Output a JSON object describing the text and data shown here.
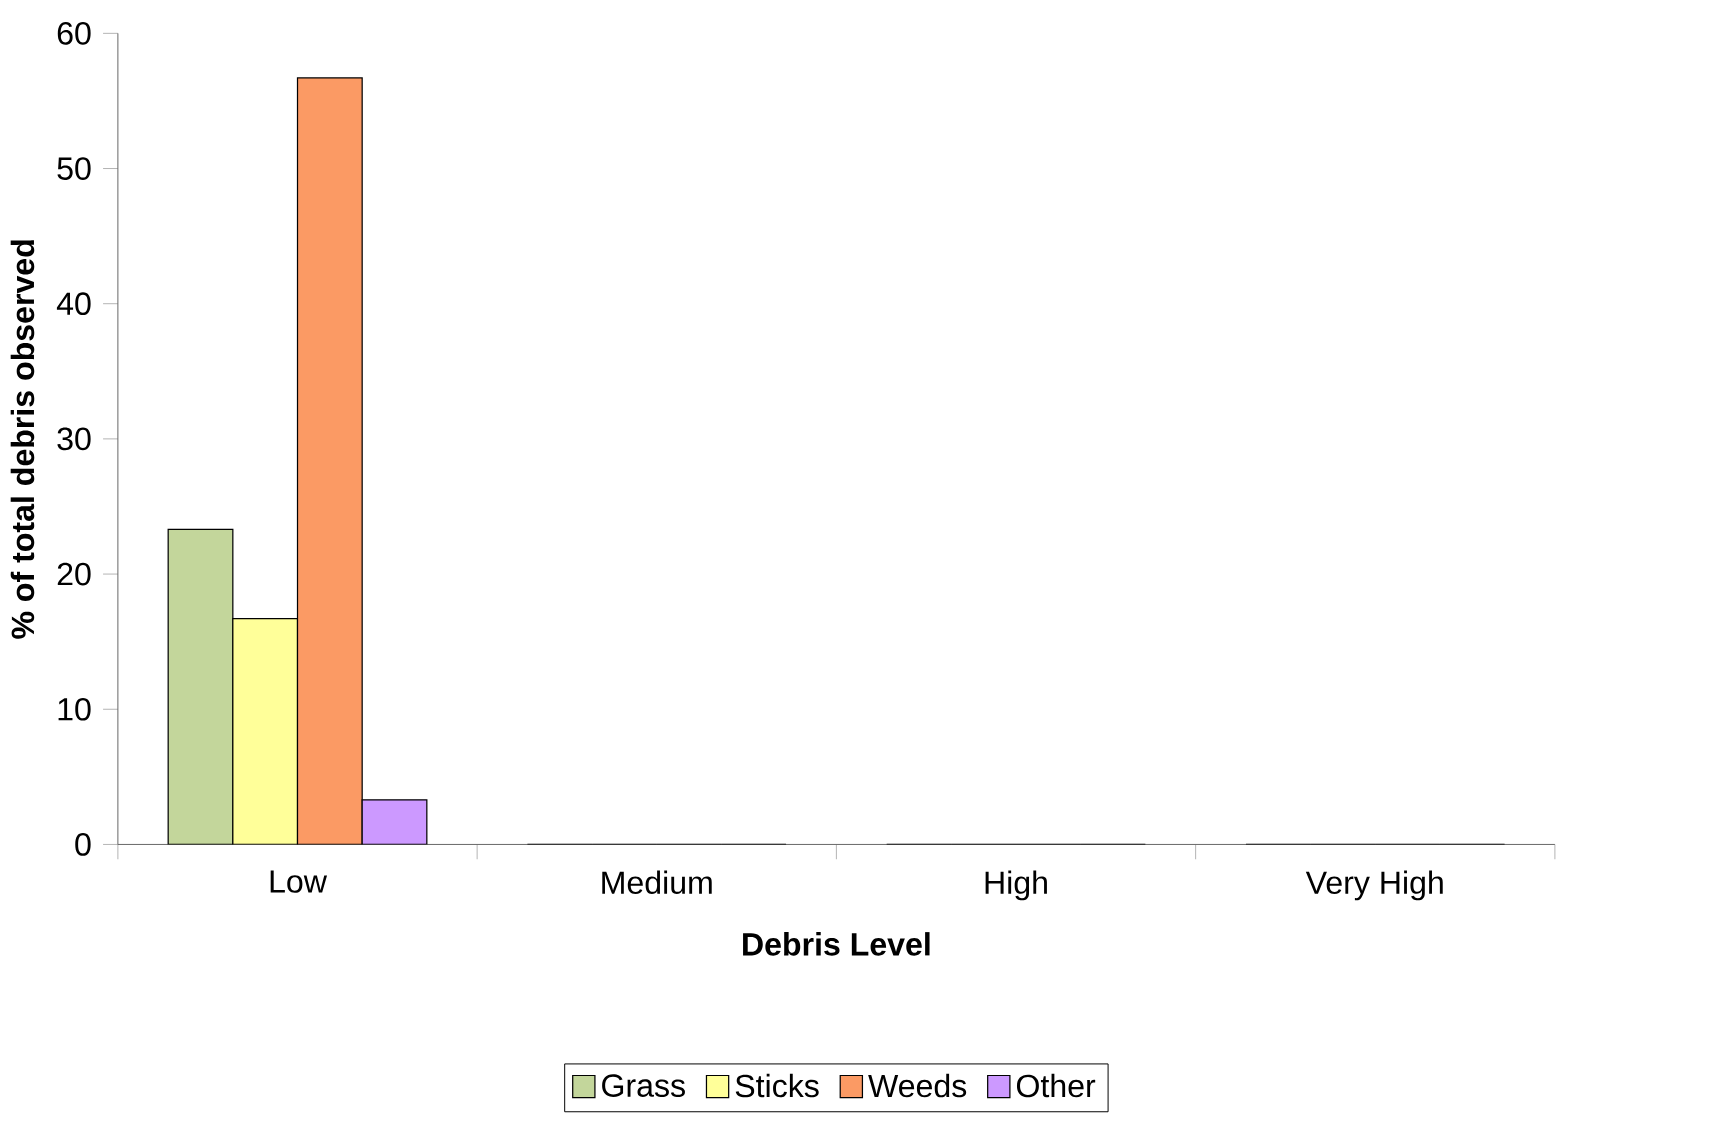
{
  "chart_data": {
    "type": "bar",
    "xlabel": "Debris Level",
    "ylabel": "% of total debris observed",
    "categories": [
      "Low",
      "Medium",
      "High",
      "Very High"
    ],
    "series": [
      {
        "name": "Grass",
        "color": "#c3d69b",
        "values": [
          23.3,
          0,
          0,
          0
        ]
      },
      {
        "name": "Sticks",
        "color": "#ffff99",
        "values": [
          16.7,
          0,
          0,
          0
        ]
      },
      {
        "name": "Weeds",
        "color": "#fb9a64",
        "values": [
          56.7,
          0,
          0,
          0
        ]
      },
      {
        "name": "Other",
        "color": "#cc99ff",
        "values": [
          3.3,
          0,
          0,
          0
        ]
      }
    ],
    "ylim": [
      0,
      60
    ],
    "yticks": [
      0,
      10,
      20,
      30,
      40,
      50,
      60
    ],
    "legend": "bottom"
  }
}
